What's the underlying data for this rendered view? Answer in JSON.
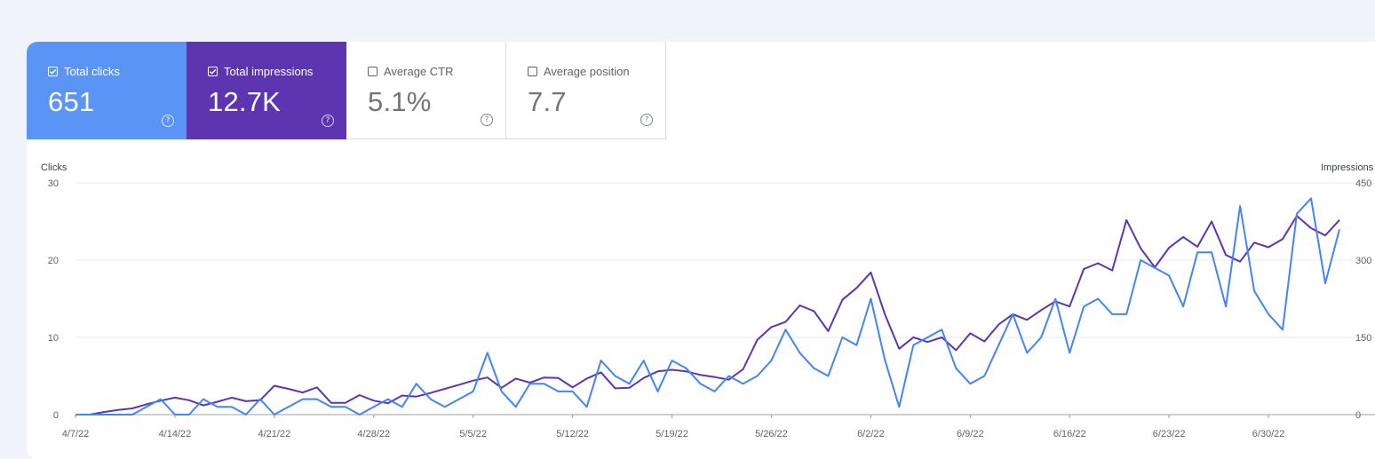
{
  "cards": [
    {
      "label": "Total clicks",
      "value": "651",
      "checked": true
    },
    {
      "label": "Total impressions",
      "value": "12.7K",
      "checked": true
    },
    {
      "label": "Average CTR",
      "value": "5.1%",
      "checked": false
    },
    {
      "label": "Average position",
      "value": "7.7",
      "checked": false
    }
  ],
  "help_glyph": "?",
  "chart_data": {
    "type": "line",
    "left_axis": {
      "label": "Clicks",
      "ticks": [
        0,
        10,
        20,
        30
      ],
      "range": [
        0,
        30
      ]
    },
    "right_axis": {
      "label": "Impressions",
      "ticks": [
        0,
        150,
        300,
        450
      ],
      "range": [
        0,
        450
      ]
    },
    "x_ticks": [
      "4/7/22",
      "4/14/22",
      "4/21/22",
      "4/28/22",
      "5/5/22",
      "5/12/22",
      "5/19/22",
      "5/26/22",
      "6/2/22",
      "6/9/22",
      "6/16/22",
      "6/23/22",
      "6/30/22"
    ],
    "x_tick_day_index": [
      0,
      7,
      14,
      21,
      28,
      35,
      42,
      49,
      56,
      63,
      70,
      77,
      84
    ],
    "colors": {
      "clicks": "#4285f4",
      "impressions": "#5e35b1"
    },
    "series": [
      {
        "name": "Clicks",
        "axis": "left",
        "values": [
          0,
          0,
          0,
          0,
          0,
          1,
          2,
          0,
          0,
          2,
          1,
          1,
          0,
          2,
          0,
          1,
          2,
          2,
          1,
          1,
          0,
          1,
          2,
          1,
          4,
          2,
          1,
          2,
          3,
          8,
          3,
          1,
          4,
          4,
          3,
          3,
          1,
          7,
          5,
          4,
          7,
          3,
          7,
          6,
          4,
          3,
          5,
          4,
          5,
          7,
          11,
          8,
          6,
          5,
          10,
          9,
          15,
          7,
          1,
          9,
          10,
          11,
          6,
          4,
          5,
          9,
          13,
          8,
          10,
          15,
          8,
          14,
          15,
          13,
          13,
          20,
          19,
          18,
          14,
          21,
          21,
          14,
          27,
          16,
          13,
          11,
          26,
          28,
          17,
          24
        ]
      },
      {
        "name": "Impressions",
        "axis": "right",
        "values": [
          0,
          0,
          5,
          9,
          12,
          20,
          27,
          33,
          28,
          18,
          25,
          33,
          26,
          28,
          56,
          50,
          43,
          53,
          23,
          23,
          38,
          27,
          22,
          37,
          35,
          42,
          50,
          58,
          66,
          72,
          52,
          70,
          62,
          72,
          71,
          53,
          70,
          82,
          51,
          52,
          71,
          84,
          87,
          84,
          77,
          73,
          68,
          88,
          145,
          170,
          180,
          212,
          201,
          162,
          223,
          246,
          276,
          194,
          128,
          150,
          141,
          150,
          125,
          158,
          142,
          175,
          195,
          184,
          203,
          220,
          210,
          283,
          294,
          280,
          378,
          323,
          286,
          324,
          345,
          326,
          375,
          310,
          297,
          334,
          325,
          341,
          386,
          362,
          348,
          378
        ]
      }
    ]
  }
}
